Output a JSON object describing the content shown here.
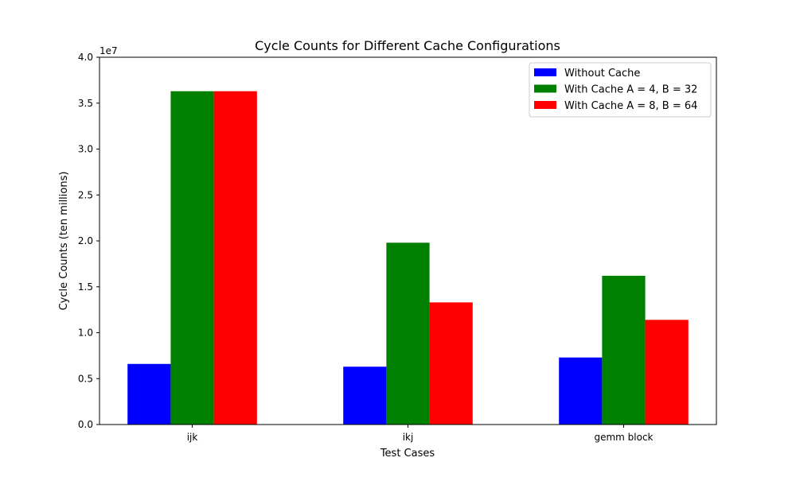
{
  "chart_data": {
    "type": "bar",
    "title": "Cycle Counts for Different Cache Configurations",
    "xlabel": "Test Cases",
    "ylabel": "Cycle Counts (ten millions)",
    "y_offset_label": "1e7",
    "ylim": [
      0,
      40000000
    ],
    "yticks": [
      0,
      5000000,
      10000000,
      15000000,
      20000000,
      25000000,
      30000000,
      35000000,
      40000000
    ],
    "ytick_labels": [
      "0.0",
      "0.5",
      "1.0",
      "1.5",
      "2.0",
      "2.5",
      "3.0",
      "3.5",
      "4.0"
    ],
    "categories": [
      "ijk",
      "ikj",
      "gemm block"
    ],
    "series": [
      {
        "name": "Without Cache",
        "color": "#0000ff",
        "values": [
          6600000,
          6300000,
          7300000
        ]
      },
      {
        "name": "With Cache A = 4, B = 32",
        "color": "#008000",
        "values": [
          36300000,
          19800000,
          16200000
        ]
      },
      {
        "name": "With Cache A = 8, B = 64",
        "color": "#ff0000",
        "values": [
          36300000,
          13300000,
          11400000
        ]
      }
    ],
    "legend_position": "top-right",
    "grid": false
  }
}
